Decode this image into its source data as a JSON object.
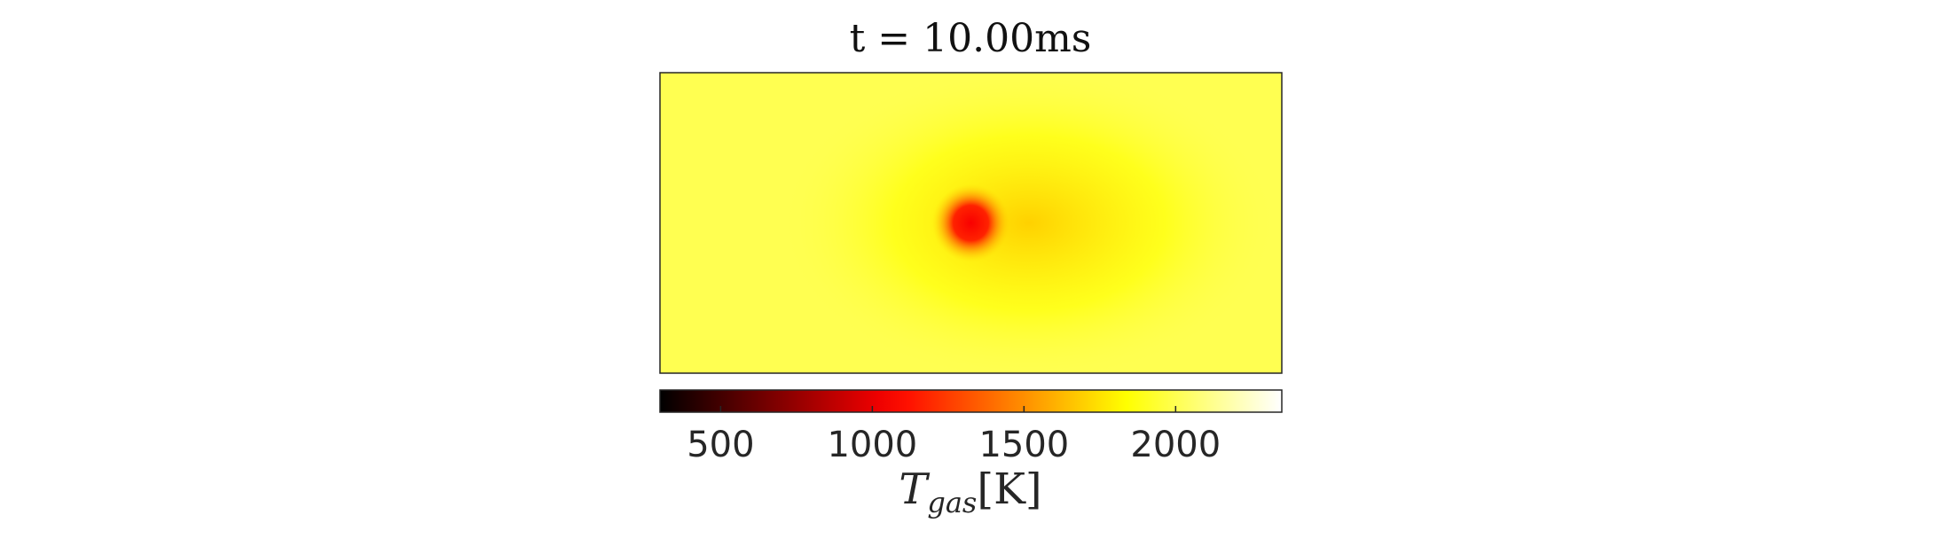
{
  "chart_data": {
    "type": "heatmap",
    "title": "t = 10.00ms",
    "colormap": "hot",
    "field": {
      "background_value": 2000,
      "hot_spot": {
        "x_fraction": 0.5,
        "y_fraction": 0.5,
        "core_value": 1050,
        "shoulder_value": 1700
      }
    },
    "colorbar": {
      "label_main": "T",
      "label_sub": "gas",
      "label_unit": "[K]",
      "clim": [
        300,
        2350
      ],
      "ticks": [
        500,
        1000,
        1500,
        2000
      ],
      "tick_labels": [
        "500",
        "1000",
        "1500",
        "2000"
      ]
    }
  }
}
